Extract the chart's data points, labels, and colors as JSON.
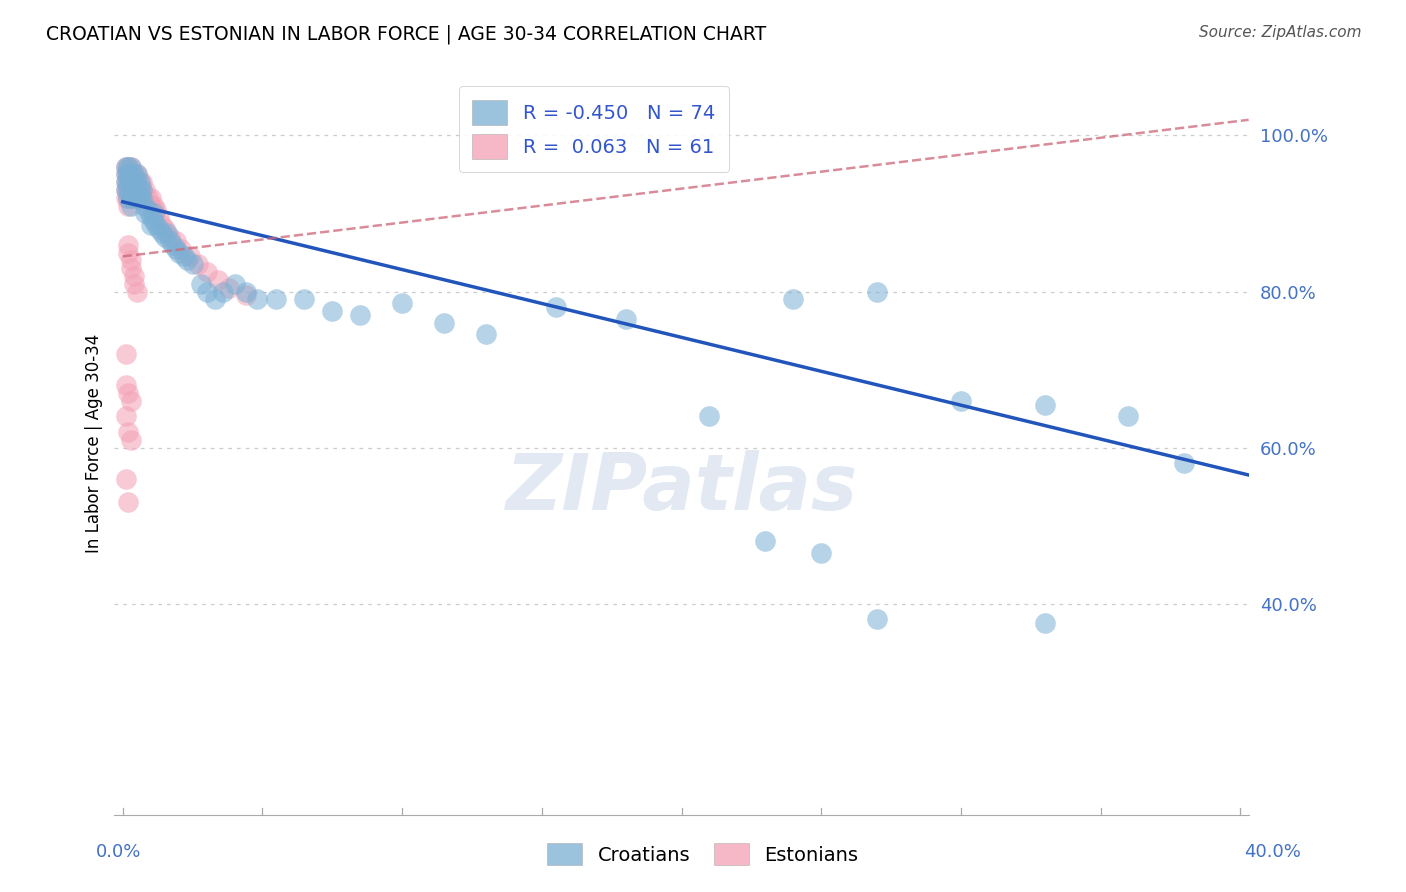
{
  "title": "CROATIAN VS ESTONIAN IN LABOR FORCE | AGE 30-34 CORRELATION CHART",
  "source": "Source: ZipAtlas.com",
  "ylabel": "In Labor Force | Age 30-34",
  "xlim": [
    -0.003,
    0.403
  ],
  "ylim": [
    0.13,
    1.08
  ],
  "yticks": [
    0.4,
    0.6,
    0.8,
    1.0
  ],
  "ytick_labels": [
    "40.0%",
    "60.0%",
    "80.0%",
    "100.0%"
  ],
  "legend_croatian_R": "-0.450",
  "legend_croatian_N": "74",
  "legend_estonian_R": "0.063",
  "legend_estonian_N": "61",
  "croatian_color": "#7bafd4",
  "estonian_color": "#f4a0b5",
  "croatian_line_color": "#2255bb",
  "estonian_line_color": "#cc6677",
  "cr_line_x0": 0.0,
  "cr_line_y0": 0.915,
  "cr_line_x1": 0.403,
  "cr_line_y1": 0.565,
  "est_line_x0": 0.0,
  "est_line_y0": 0.845,
  "est_line_x1": 0.403,
  "est_line_y1": 1.02,
  "croatian_x": [
    0.001,
    0.001,
    0.001,
    0.001,
    0.002,
    0.002,
    0.002,
    0.002,
    0.002,
    0.003,
    0.003,
    0.003,
    0.003,
    0.003,
    0.003,
    0.004,
    0.004,
    0.004,
    0.004,
    0.005,
    0.005,
    0.005,
    0.005,
    0.006,
    0.006,
    0.006,
    0.007,
    0.007,
    0.008,
    0.008,
    0.009,
    0.01,
    0.01,
    0.011,
    0.011,
    0.012,
    0.013,
    0.014,
    0.015,
    0.016,
    0.017,
    0.018,
    0.019,
    0.02,
    0.022,
    0.023,
    0.025,
    0.028,
    0.03,
    0.033,
    0.036,
    0.04,
    0.044,
    0.048,
    0.055,
    0.065,
    0.075,
    0.085,
    0.1,
    0.115,
    0.13,
    0.155,
    0.18,
    0.21,
    0.24,
    0.27,
    0.3,
    0.33,
    0.36,
    0.38,
    0.23,
    0.25,
    0.27,
    0.33
  ],
  "croatian_y": [
    0.96,
    0.95,
    0.94,
    0.93,
    0.96,
    0.95,
    0.94,
    0.93,
    0.92,
    0.96,
    0.95,
    0.94,
    0.93,
    0.92,
    0.91,
    0.95,
    0.94,
    0.93,
    0.92,
    0.95,
    0.94,
    0.93,
    0.92,
    0.94,
    0.93,
    0.92,
    0.93,
    0.92,
    0.91,
    0.9,
    0.905,
    0.895,
    0.885,
    0.9,
    0.89,
    0.885,
    0.88,
    0.875,
    0.87,
    0.875,
    0.865,
    0.86,
    0.855,
    0.85,
    0.845,
    0.84,
    0.835,
    0.81,
    0.8,
    0.79,
    0.8,
    0.81,
    0.8,
    0.79,
    0.79,
    0.79,
    0.775,
    0.77,
    0.785,
    0.76,
    0.745,
    0.78,
    0.765,
    0.64,
    0.79,
    0.8,
    0.66,
    0.655,
    0.64,
    0.58,
    0.48,
    0.465,
    0.38,
    0.375
  ],
  "estonian_x": [
    0.001,
    0.001,
    0.001,
    0.001,
    0.001,
    0.002,
    0.002,
    0.002,
    0.002,
    0.002,
    0.002,
    0.003,
    0.003,
    0.003,
    0.003,
    0.003,
    0.004,
    0.004,
    0.004,
    0.005,
    0.005,
    0.005,
    0.006,
    0.006,
    0.007,
    0.007,
    0.007,
    0.008,
    0.009,
    0.01,
    0.01,
    0.011,
    0.012,
    0.013,
    0.014,
    0.015,
    0.017,
    0.019,
    0.021,
    0.024,
    0.027,
    0.03,
    0.034,
    0.038,
    0.044,
    0.002,
    0.002,
    0.003,
    0.003,
    0.004,
    0.004,
    0.005,
    0.001,
    0.001,
    0.002,
    0.003,
    0.001,
    0.002,
    0.003,
    0.002,
    0.001
  ],
  "estonian_y": [
    0.96,
    0.95,
    0.94,
    0.93,
    0.92,
    0.96,
    0.95,
    0.94,
    0.93,
    0.92,
    0.91,
    0.96,
    0.95,
    0.94,
    0.93,
    0.92,
    0.95,
    0.94,
    0.93,
    0.95,
    0.94,
    0.93,
    0.94,
    0.93,
    0.94,
    0.93,
    0.92,
    0.93,
    0.92,
    0.92,
    0.91,
    0.91,
    0.905,
    0.895,
    0.885,
    0.88,
    0.87,
    0.865,
    0.855,
    0.845,
    0.835,
    0.825,
    0.815,
    0.805,
    0.795,
    0.86,
    0.85,
    0.84,
    0.83,
    0.82,
    0.81,
    0.8,
    0.72,
    0.68,
    0.67,
    0.66,
    0.64,
    0.62,
    0.61,
    0.53,
    0.56
  ]
}
